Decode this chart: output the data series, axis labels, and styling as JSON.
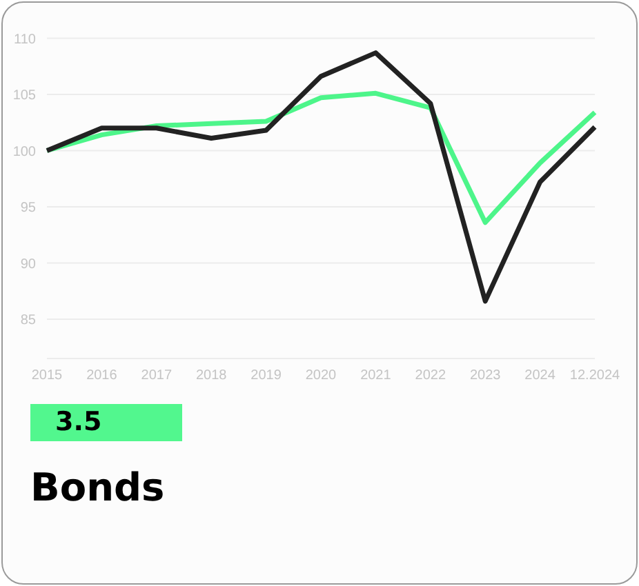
{
  "chart_data": {
    "type": "line",
    "title": "Bonds",
    "annotations": [
      "3.5"
    ],
    "categories": [
      "2015",
      "2016",
      "2017",
      "2018",
      "2019",
      "2020",
      "2021",
      "2022",
      "2023",
      "2024",
      "12.2024"
    ],
    "series": [
      {
        "color": "#4df58a",
        "values": [
          100,
          101.4,
          102.2,
          102.4,
          102.6,
          104.7,
          105.1,
          103.8,
          93.6,
          98.9,
          103.4
        ]
      },
      {
        "color": "#222222",
        "values": [
          100,
          102,
          102,
          101.1,
          101.8,
          106.6,
          108.7,
          104.2,
          86.6,
          97.2,
          102.1
        ]
      }
    ],
    "ylim": [
      81.5,
      110
    ],
    "yticks": [
      85,
      90,
      95,
      100,
      105,
      110
    ],
    "grid": "y",
    "legend": false,
    "marker": "none",
    "line_style": "solid"
  }
}
